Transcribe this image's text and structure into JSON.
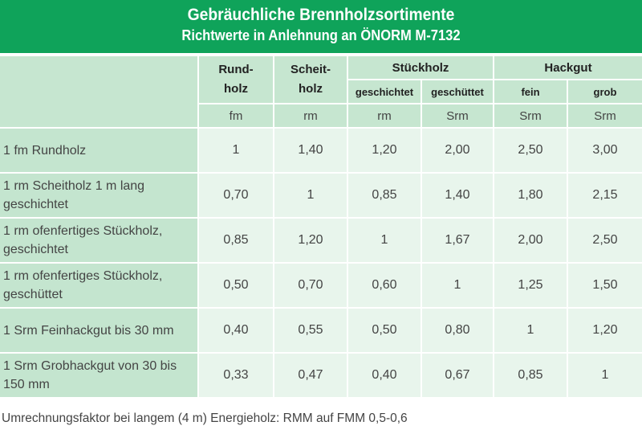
{
  "title": "Gebräuchliche Brennholzsortimente",
  "subtitle": "Richtwerte in Anlehnung an ÖNORM  M-7132",
  "header": {
    "rundholz": "Rund-\nholz",
    "scheitholz": "Scheit-\nholz",
    "stueckholz": "Stückholz",
    "hackgut": "Hackgut",
    "geschichtet": "geschichtet",
    "geschuettet": "geschüttet",
    "fein": "fein",
    "grob": "grob",
    "units": [
      "fm",
      "rm",
      "rm",
      "Srm",
      "Srm",
      "Srm"
    ]
  },
  "rows": [
    {
      "label": "1 fm Rundholz",
      "values": [
        "1",
        "1,40",
        "1,20",
        "2,00",
        "2,50",
        "3,00"
      ]
    },
    {
      "label": "1 rm Scheitholz 1 m lang geschichtet",
      "values": [
        "0,70",
        "1",
        "0,85",
        "1,40",
        "1,80",
        "2,15"
      ]
    },
    {
      "label": "1 rm ofenfertiges Stückholz, geschichtet",
      "values": [
        "0,85",
        "1,20",
        "1",
        "1,67",
        "2,00",
        "2,50"
      ]
    },
    {
      "label": "1 rm ofenfertiges Stückholz, geschüttet",
      "values": [
        "0,50",
        "0,70",
        "0,60",
        "1",
        "1,25",
        "1,50"
      ]
    },
    {
      "label": "1 Srm Feinhackgut bis 30 mm",
      "values": [
        "0,40",
        "0,55",
        "0,50",
        "0,80",
        "1",
        "1,20"
      ]
    },
    {
      "label": "1 Srm Grobhackgut von 30 bis 150 mm",
      "values": [
        "0,33",
        "0,47",
        "0,40",
        "0,67",
        "0,85",
        "1"
      ]
    }
  ],
  "footer": "Umrechnungsfaktor bei langem (4 m) Energieholz: RMM auf FMM 0,5-0,6",
  "colors": {
    "header_band": "#0fa35a",
    "header_cell": "#c6e6d0",
    "label_cell": "#c4e5cf",
    "value_cell": "#e8f5ec"
  }
}
